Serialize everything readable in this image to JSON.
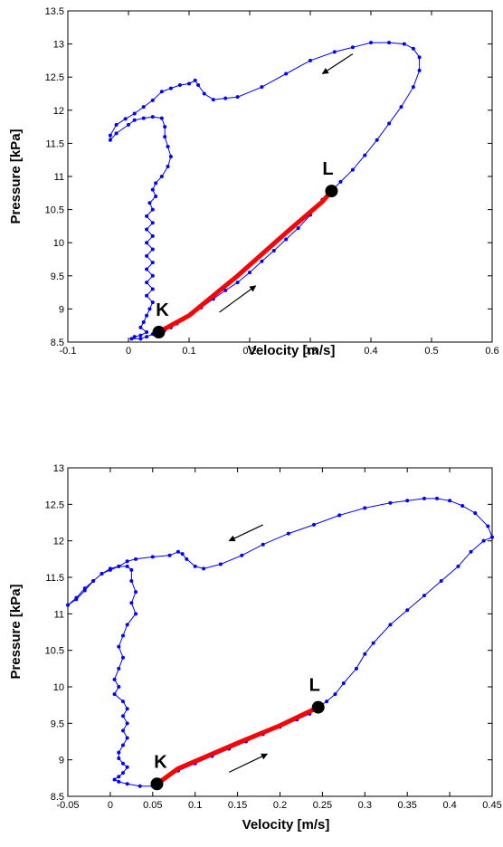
{
  "chart_data": [
    {
      "type": "line",
      "xlabel": "Velocity [m/s]",
      "ylabel": "Pressure [kPa]",
      "xlim": [
        -0.1,
        0.6
      ],
      "ylim": [
        8.5,
        13.5
      ],
      "xticks": [
        "-0.1",
        "0",
        "0.1",
        "0.2",
        "0.3",
        "0.4",
        "0.5",
        "0.6"
      ],
      "yticks": [
        "8.5",
        "9",
        "9.5",
        "10",
        "10.5",
        "11",
        "11.5",
        "12",
        "12.5",
        "13",
        "13.5"
      ],
      "grid": false,
      "colors": {
        "loop": "#0000ff",
        "segment": "#ff0000",
        "points": "#000000",
        "arrows": "#000000"
      },
      "loop": [
        [
          0.05,
          8.65
        ],
        [
          0.06,
          8.68
        ],
        [
          0.07,
          8.72
        ],
        [
          0.08,
          8.78
        ],
        [
          0.09,
          8.84
        ],
        [
          0.1,
          8.9
        ],
        [
          0.12,
          9.02
        ],
        [
          0.14,
          9.15
        ],
        [
          0.16,
          9.28
        ],
        [
          0.18,
          9.4
        ],
        [
          0.2,
          9.55
        ],
        [
          0.22,
          9.72
        ],
        [
          0.24,
          9.88
        ],
        [
          0.26,
          10.05
        ],
        [
          0.28,
          10.22
        ],
        [
          0.3,
          10.42
        ],
        [
          0.32,
          10.65
        ],
        [
          0.335,
          10.78
        ],
        [
          0.35,
          10.92
        ],
        [
          0.37,
          11.1
        ],
        [
          0.39,
          11.32
        ],
        [
          0.41,
          11.55
        ],
        [
          0.43,
          11.8
        ],
        [
          0.45,
          12.05
        ],
        [
          0.47,
          12.35
        ],
        [
          0.48,
          12.6
        ],
        [
          0.48,
          12.8
        ],
        [
          0.47,
          12.93
        ],
        [
          0.455,
          13.0
        ],
        [
          0.43,
          13.02
        ],
        [
          0.4,
          13.02
        ],
        [
          0.37,
          12.95
        ],
        [
          0.34,
          12.88
        ],
        [
          0.3,
          12.75
        ],
        [
          0.26,
          12.55
        ],
        [
          0.22,
          12.35
        ],
        [
          0.18,
          12.2
        ],
        [
          0.16,
          12.18
        ],
        [
          0.14,
          12.16
        ],
        [
          0.125,
          12.25
        ],
        [
          0.115,
          12.38
        ],
        [
          0.11,
          12.45
        ],
        [
          0.1,
          12.4
        ],
        [
          0.085,
          12.38
        ],
        [
          0.07,
          12.33
        ],
        [
          0.055,
          12.28
        ],
        [
          0.04,
          12.15
        ],
        [
          0.025,
          12.05
        ],
        [
          0.01,
          11.95
        ],
        [
          -0.005,
          11.87
        ],
        [
          -0.02,
          11.78
        ],
        [
          -0.03,
          11.62
        ],
        [
          -0.03,
          11.55
        ],
        [
          -0.02,
          11.65
        ],
        [
          0.0,
          11.78
        ],
        [
          0.01,
          11.85
        ],
        [
          0.025,
          11.88
        ],
        [
          0.04,
          11.9
        ],
        [
          0.055,
          11.88
        ],
        [
          0.06,
          11.75
        ],
        [
          0.06,
          11.6
        ],
        [
          0.065,
          11.45
        ],
        [
          0.07,
          11.3
        ],
        [
          0.065,
          11.15
        ],
        [
          0.055,
          11.0
        ],
        [
          0.045,
          10.9
        ],
        [
          0.04,
          10.8
        ],
        [
          0.045,
          10.7
        ],
        [
          0.035,
          10.6
        ],
        [
          0.04,
          10.5
        ],
        [
          0.03,
          10.4
        ],
        [
          0.04,
          10.3
        ],
        [
          0.03,
          10.2
        ],
        [
          0.04,
          10.1
        ],
        [
          0.03,
          10.0
        ],
        [
          0.04,
          9.9
        ],
        [
          0.03,
          9.8
        ],
        [
          0.04,
          9.7
        ],
        [
          0.03,
          9.6
        ],
        [
          0.04,
          9.5
        ],
        [
          0.03,
          9.4
        ],
        [
          0.04,
          9.3
        ],
        [
          0.03,
          9.2
        ],
        [
          0.04,
          9.1
        ],
        [
          0.035,
          9.0
        ],
        [
          0.03,
          8.9
        ],
        [
          0.025,
          8.8
        ],
        [
          0.02,
          8.72
        ],
        [
          0.03,
          8.65
        ],
        [
          0.02,
          8.6
        ],
        [
          0.01,
          8.58
        ],
        [
          0.005,
          8.55
        ],
        [
          0.02,
          8.55
        ],
        [
          0.03,
          8.58
        ],
        [
          0.04,
          8.62
        ],
        [
          0.05,
          8.65
        ]
      ],
      "segment": [
        [
          0.05,
          8.65
        ],
        [
          0.1,
          8.9
        ],
        [
          0.18,
          9.5
        ],
        [
          0.26,
          10.15
        ],
        [
          0.32,
          10.62
        ],
        [
          0.335,
          10.78
        ]
      ],
      "points": [
        {
          "label": "K",
          "x": 0.05,
          "y": 8.65
        },
        {
          "label": "L",
          "x": 0.335,
          "y": 10.78
        }
      ],
      "arrows": [
        {
          "from": [
            0.37,
            12.85
          ],
          "to": [
            0.32,
            12.55
          ]
        },
        {
          "from": [
            0.15,
            8.95
          ],
          "to": [
            0.21,
            9.35
          ]
        }
      ]
    },
    {
      "type": "line",
      "xlabel": "Velocity [m/s]",
      "ylabel": "Pressure [kPa]",
      "xlim": [
        -0.05,
        0.45
      ],
      "ylim": [
        8.5,
        13
      ],
      "xticks": [
        "-0.05",
        "0",
        "0.05",
        "0.1",
        "0.15",
        "0.2",
        "0.25",
        "0.3",
        "0.35",
        "0.4",
        "0.45"
      ],
      "yticks": [
        "8.5",
        "9",
        "9.5",
        "10",
        "10.5",
        "11",
        "11.5",
        "12",
        "12.5",
        "13"
      ],
      "grid": false,
      "colors": {
        "loop": "#0000ff",
        "segment": "#ff0000",
        "points": "#000000",
        "arrows": "#000000"
      },
      "loop": [
        [
          0.055,
          8.67
        ],
        [
          0.065,
          8.75
        ],
        [
          0.08,
          8.85
        ],
        [
          0.1,
          8.95
        ],
        [
          0.12,
          9.05
        ],
        [
          0.14,
          9.15
        ],
        [
          0.16,
          9.25
        ],
        [
          0.18,
          9.35
        ],
        [
          0.2,
          9.45
        ],
        [
          0.22,
          9.55
        ],
        [
          0.235,
          9.63
        ],
        [
          0.245,
          9.72
        ],
        [
          0.255,
          9.8
        ],
        [
          0.265,
          9.9
        ],
        [
          0.275,
          10.05
        ],
        [
          0.29,
          10.25
        ],
        [
          0.3,
          10.45
        ],
        [
          0.31,
          10.6
        ],
        [
          0.33,
          10.85
        ],
        [
          0.35,
          11.05
        ],
        [
          0.37,
          11.25
        ],
        [
          0.39,
          11.45
        ],
        [
          0.41,
          11.65
        ],
        [
          0.425,
          11.85
        ],
        [
          0.44,
          12.0
        ],
        [
          0.45,
          12.05
        ],
        [
          0.445,
          12.2
        ],
        [
          0.43,
          12.38
        ],
        [
          0.415,
          12.48
        ],
        [
          0.4,
          12.55
        ],
        [
          0.385,
          12.58
        ],
        [
          0.37,
          12.58
        ],
        [
          0.35,
          12.55
        ],
        [
          0.33,
          12.52
        ],
        [
          0.3,
          12.45
        ],
        [
          0.27,
          12.35
        ],
        [
          0.24,
          12.22
        ],
        [
          0.21,
          12.1
        ],
        [
          0.18,
          11.95
        ],
        [
          0.155,
          11.8
        ],
        [
          0.13,
          11.68
        ],
        [
          0.11,
          11.62
        ],
        [
          0.1,
          11.65
        ],
        [
          0.09,
          11.75
        ],
        [
          0.085,
          11.82
        ],
        [
          0.08,
          11.85
        ],
        [
          0.07,
          11.8
        ],
        [
          0.05,
          11.78
        ],
        [
          0.03,
          11.75
        ],
        [
          0.02,
          11.72
        ],
        [
          0.01,
          11.65
        ],
        [
          0.0,
          11.6
        ],
        [
          -0.01,
          11.55
        ],
        [
          -0.02,
          11.45
        ],
        [
          -0.03,
          11.35
        ],
        [
          -0.04,
          11.22
        ],
        [
          -0.05,
          11.12
        ],
        [
          -0.04,
          11.2
        ],
        [
          -0.03,
          11.32
        ],
        [
          -0.02,
          11.45
        ],
        [
          -0.01,
          11.55
        ],
        [
          0.0,
          11.62
        ],
        [
          0.01,
          11.65
        ],
        [
          0.02,
          11.65
        ],
        [
          0.025,
          11.6
        ],
        [
          0.025,
          11.45
        ],
        [
          0.03,
          11.3
        ],
        [
          0.025,
          11.15
        ],
        [
          0.03,
          11.0
        ],
        [
          0.02,
          10.85
        ],
        [
          0.015,
          10.7
        ],
        [
          0.01,
          10.55
        ],
        [
          0.015,
          10.4
        ],
        [
          0.01,
          10.25
        ],
        [
          0.005,
          10.1
        ],
        [
          0.01,
          10.0
        ],
        [
          0.005,
          9.9
        ],
        [
          0.015,
          9.8
        ],
        [
          0.02,
          9.7
        ],
        [
          0.015,
          9.6
        ],
        [
          0.02,
          9.5
        ],
        [
          0.015,
          9.4
        ],
        [
          0.02,
          9.3
        ],
        [
          0.015,
          9.2
        ],
        [
          0.01,
          9.1
        ],
        [
          0.01,
          9.02
        ],
        [
          0.015,
          8.95
        ],
        [
          0.02,
          8.9
        ],
        [
          0.015,
          8.82
        ],
        [
          0.01,
          8.77
        ],
        [
          0.005,
          8.73
        ],
        [
          0.01,
          8.7
        ],
        [
          0.02,
          8.67
        ],
        [
          0.035,
          8.64
        ],
        [
          0.05,
          8.64
        ],
        [
          0.055,
          8.67
        ]
      ],
      "segment": [
        [
          0.055,
          8.67
        ],
        [
          0.08,
          8.88
        ],
        [
          0.15,
          9.23
        ],
        [
          0.2,
          9.47
        ],
        [
          0.245,
          9.72
        ]
      ],
      "points": [
        {
          "label": "K",
          "x": 0.055,
          "y": 8.67
        },
        {
          "label": "L",
          "x": 0.245,
          "y": 9.72
        }
      ],
      "arrows": [
        {
          "from": [
            0.18,
            12.22
          ],
          "to": [
            0.14,
            12.0
          ]
        },
        {
          "from": [
            0.14,
            8.83
          ],
          "to": [
            0.185,
            9.08
          ]
        }
      ]
    }
  ]
}
